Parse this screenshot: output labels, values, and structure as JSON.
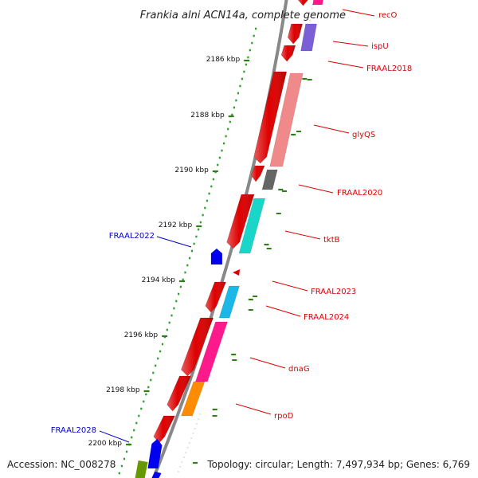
{
  "title": "Frankia alni ACN14a, complete genome",
  "footer": {
    "accession": "Accession: NC_008278",
    "summary": "Topology: circular; Length: 7,497,934 bp; Genes: 6,769"
  },
  "colors": {
    "backbone": "#888888",
    "tick": "#2e7d1a",
    "gc_dot": "#2e9e2e",
    "label_red": "#dd0000",
    "label_blue": "#0000cc",
    "leader_red": "#dd0000",
    "leader_blue": "#0000cc"
  },
  "ticks": [
    {
      "label": "2186 kbp"
    },
    {
      "label": "2188 kbp"
    },
    {
      "label": "2190 kbp"
    },
    {
      "label": "2192 kbp"
    },
    {
      "label": "2194 kbp"
    },
    {
      "label": "2196 kbp"
    },
    {
      "label": "2198 kbp"
    },
    {
      "label": "2200 kbp"
    }
  ],
  "genes": [
    {
      "name": "recO",
      "color": "#dd0000",
      "label_color": "#dd0000",
      "category": "#ff1a8c"
    },
    {
      "name": "ispU",
      "color": "#dd0000",
      "label_color": "#dd0000",
      "category": "#7a5fd6"
    },
    {
      "name": "FRAAL2018",
      "color": "#dd0000",
      "label_color": "#dd0000",
      "category": ""
    },
    {
      "name": "glyQS",
      "color": "#dd0000",
      "label_color": "#dd0000",
      "category": "#f08a8a"
    },
    {
      "name": "FRAAL2020",
      "color": "#dd0000",
      "label_color": "#dd0000",
      "category": "#666666"
    },
    {
      "name": "tktB",
      "color": "#dd0000",
      "label_color": "#dd0000",
      "category": "#1ad6c8"
    },
    {
      "name": "FRAAL2022",
      "color": "#0000ee",
      "label_color": "#0000cc",
      "category": ""
    },
    {
      "name": "FRAAL2023",
      "color": "#dd0000",
      "label_color": "#dd0000",
      "category": ""
    },
    {
      "name": "FRAAL2024",
      "color": "#dd0000",
      "label_color": "#dd0000",
      "category": "#19b8e6"
    },
    {
      "name": "dnaG",
      "color": "#dd0000",
      "label_color": "#dd0000",
      "category": "#ff1a8c"
    },
    {
      "name": "rpoD",
      "color": "#dd0000",
      "label_color": "#dd0000",
      "category": "#ff8c00"
    },
    {
      "name": "FRAAL2028",
      "color": "#0000ee",
      "label_color": "#0000cc",
      "category": "#669900"
    }
  ]
}
